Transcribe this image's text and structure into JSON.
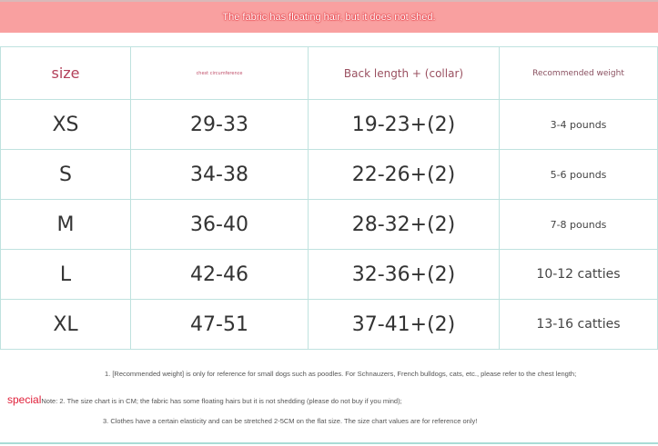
{
  "banner": "The fabric has floating hair, but it does not shed.",
  "headers": [
    "size",
    "chest circumference",
    "Back length + (collar)",
    "Recommended weight"
  ],
  "rows": [
    {
      "size": "XS",
      "chest": "29-33",
      "back": "19-23+(2)",
      "weight": "3-4 pounds"
    },
    {
      "size": "S",
      "chest": "34-38",
      "back": "22-26+(2)",
      "weight": "5-6 pounds"
    },
    {
      "size": "M",
      "chest": "36-40",
      "back": "28-32+(2)",
      "weight": "7-8 pounds"
    },
    {
      "size": "L",
      "chest": "42-46",
      "back": "32-36+(2)",
      "weight": "10-12 catties"
    },
    {
      "size": "XL",
      "chest": "47-51",
      "back": "37-41+(2)",
      "weight": "13-16 catties"
    }
  ],
  "notes": {
    "n1": "1. [Recommended weight] is only for reference for small dogs such as poodles. For Schnauzers, French bulldogs, cats, etc., please refer to the chest length;",
    "special": "special",
    "n2": "Note: 2. The size chart is in CM; the fabric has some floating hairs but it is not shedding (please do not buy if you mind);",
    "n3": "3. Clothes have a certain elasticity and can be stretched 2-5CM on the flat size. The size chart values are for reference only!"
  }
}
